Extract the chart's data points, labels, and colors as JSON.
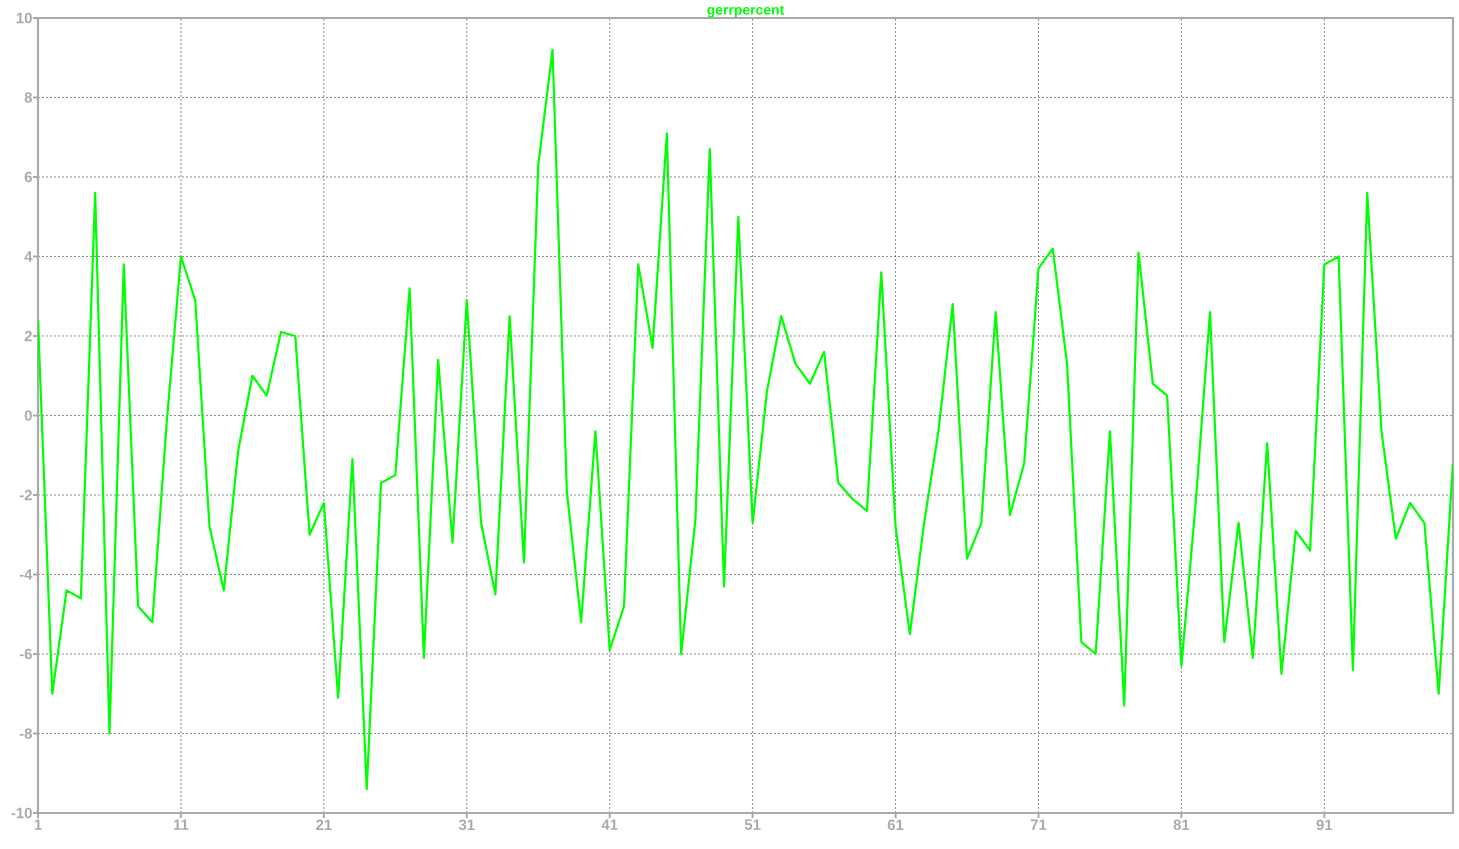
{
  "chart_data": {
    "type": "line",
    "title": "gerrpercent",
    "x": [
      1,
      2,
      3,
      4,
      5,
      6,
      7,
      8,
      9,
      10,
      11,
      12,
      13,
      14,
      15,
      16,
      17,
      18,
      19,
      20,
      21,
      22,
      23,
      24,
      25,
      26,
      27,
      28,
      29,
      30,
      31,
      32,
      33,
      34,
      35,
      36,
      37,
      38,
      39,
      40,
      41,
      42,
      43,
      44,
      45,
      46,
      47,
      48,
      49,
      50,
      51,
      52,
      53,
      54,
      55,
      56,
      57,
      58,
      59,
      60,
      61,
      62,
      63,
      64,
      65,
      66,
      67,
      68,
      69,
      70,
      71,
      72,
      73,
      74,
      75,
      76,
      77,
      78,
      79,
      80,
      81,
      82,
      83,
      84,
      85,
      86,
      87,
      88,
      89,
      90,
      91,
      92,
      93,
      94,
      95,
      96,
      97,
      98,
      99,
      100
    ],
    "series": [
      {
        "color": "#00ff00",
        "values": [
          2.4,
          -7.0,
          -4.4,
          -4.6,
          5.6,
          -8.0,
          3.8,
          -4.8,
          -5.2,
          -0.2,
          4.0,
          2.9,
          -2.8,
          -4.4,
          -0.9,
          1.0,
          0.5,
          2.1,
          2.0,
          -3.0,
          -2.2,
          -7.1,
          -1.1,
          -9.4,
          -1.7,
          -1.5,
          3.2,
          -6.1,
          1.4,
          -3.2,
          2.9,
          -2.7,
          -4.5,
          2.5,
          -3.7,
          6.3,
          9.2,
          -1.9,
          -5.2,
          -0.4,
          -5.9,
          -4.8,
          3.8,
          1.7,
          7.1,
          -6.0,
          -2.6,
          6.7,
          -4.3,
          5.0,
          -2.7,
          0.6,
          2.5,
          1.3,
          0.8,
          1.6,
          -1.7,
          -2.1,
          -2.4,
          3.6,
          -2.8,
          -5.5,
          -2.7,
          -0.4,
          2.8,
          -3.6,
          -2.7,
          2.6,
          -2.5,
          -1.2,
          3.7,
          4.2,
          1.3,
          -5.7,
          -6.0,
          -0.4,
          -7.3,
          4.1,
          0.8,
          0.5,
          -6.3,
          -2.2,
          2.6,
          -5.7,
          -2.7,
          -6.1,
          -0.7,
          -6.5,
          -2.9,
          -3.4,
          3.8,
          4.0,
          -6.4,
          5.6,
          -0.4,
          -3.1,
          -2.2,
          -2.7,
          -7.0,
          -1.2
        ]
      }
    ],
    "xlim": [
      1,
      100
    ],
    "ylim": [
      -10,
      10
    ],
    "xticks": [
      1,
      11,
      21,
      31,
      41,
      51,
      61,
      71,
      81,
      91
    ],
    "yticks": [
      -10,
      -8,
      -6,
      -4,
      -2,
      0,
      2,
      4,
      6,
      8,
      10
    ],
    "grid": true,
    "marker": "none",
    "line_style": "solid"
  }
}
